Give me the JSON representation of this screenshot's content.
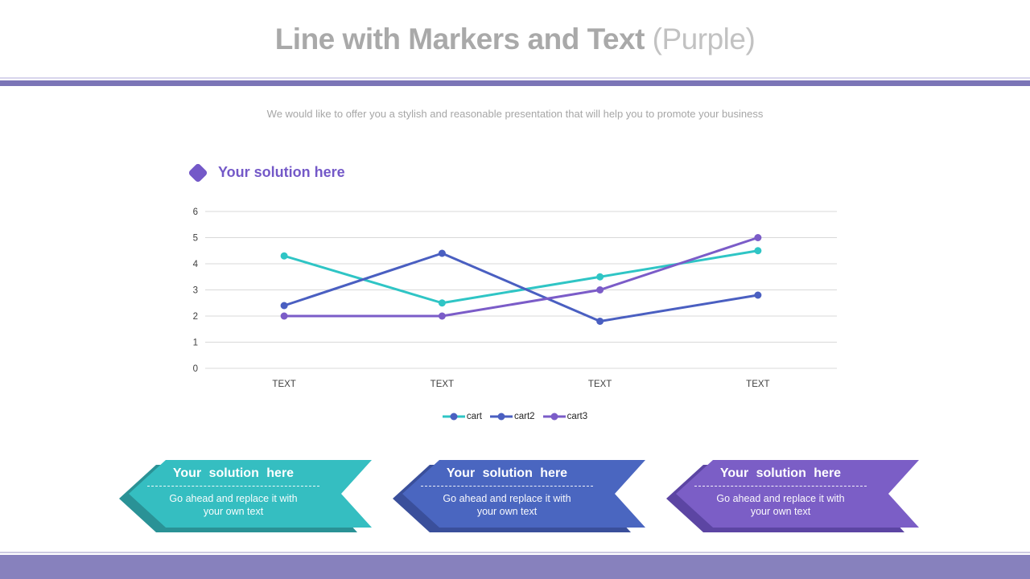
{
  "slide": {
    "title_main": "Line with Markers and Text",
    "title_suffix": " (Purple)",
    "subtitle": "We would like to offer you a stylish and reasonable presentation that will help you to promote your business"
  },
  "section": {
    "heading": "Your solution here",
    "accent_color": "#7459c8"
  },
  "chart_data": {
    "type": "line",
    "categories": [
      "TEXT",
      "TEXT",
      "TEXT",
      "TEXT"
    ],
    "series": [
      {
        "name": "cart",
        "values": [
          4.3,
          2.5,
          3.5,
          4.5
        ],
        "color": "#2fc5c5",
        "legend_marker_color": "#4a5fc1"
      },
      {
        "name": "cart2",
        "values": [
          2.4,
          4.4,
          1.8,
          2.8
        ],
        "color": "#4a5fc1",
        "legend_marker_color": "#4a5fc1"
      },
      {
        "name": "cart3",
        "values": [
          2.0,
          2.0,
          3.0,
          5.0
        ],
        "color": "#7b5cc8",
        "legend_marker_color": "#7b5cc8"
      }
    ],
    "ylim": [
      0,
      6
    ],
    "ytick_step": 1,
    "grid": true,
    "gridline_color": "#d9d9d9",
    "tick_label_color": "#404040",
    "legend_position": "bottom",
    "marker": "circle"
  },
  "banners": [
    {
      "title": "Your solution here",
      "body_line1": "Go ahead and replace it with",
      "body_line2": "your own text",
      "color": "#35bec1",
      "shadow_color": "#2a9296"
    },
    {
      "title": "Your solution here",
      "body_line1": "Go ahead and replace it with",
      "body_line2": "your own text",
      "color": "#4a66c0",
      "shadow_color": "#3a4f9b"
    },
    {
      "title": "Your solution here",
      "body_line1": "Go ahead and replace it with",
      "body_line2": "your own text",
      "color": "#7b5ec6",
      "shadow_color": "#5c45a3"
    }
  ],
  "theme": {
    "divider_color": "#7b75b7",
    "footer_color": "#8781bd"
  }
}
